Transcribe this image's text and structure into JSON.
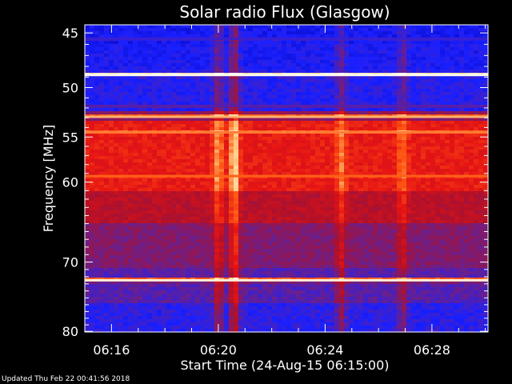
{
  "chart_data": {
    "type": "heatmap",
    "title": "Solar radio Flux (Glasgow)",
    "xlabel": "Start Time (24-Aug-15 06:15:00)",
    "ylabel": "Frequency [MHz]",
    "x_ticks": [
      "06:16",
      "06:20",
      "06:24",
      "06:28"
    ],
    "x_tick_values_min": [
      1,
      5,
      9,
      13
    ],
    "xlim_min": [
      0,
      15.1
    ],
    "y_ticks": [
      45,
      50,
      55,
      60,
      70,
      80
    ],
    "ylim": [
      44.3,
      80.1
    ],
    "y_scale": "log",
    "colormap": [
      "#0000b4",
      "#1a20ff",
      "#6a1f8c",
      "#b0102a",
      "#e61414",
      "#ff5a14",
      "#ffd08a",
      "#ffffff"
    ],
    "horizontal_bands": [
      {
        "freq_mhz": 45.5,
        "level": 0.2
      },
      {
        "freq_mhz": 48.8,
        "level": 0.98
      },
      {
        "freq_mhz": 51.8,
        "level": 0.25
      },
      {
        "freq_mhz": 52.9,
        "level": 0.82
      },
      {
        "freq_mhz": 54.5,
        "level": 0.75
      },
      {
        "freq_mhz": 59.3,
        "level": 0.72
      },
      {
        "freq_mhz": 72.5,
        "level": 0.95
      }
    ],
    "vertical_bursts": [
      {
        "time_min": 5.0,
        "level": 0.6
      },
      {
        "time_min": 5.6,
        "level": 0.85
      },
      {
        "time_min": 9.6,
        "level": 0.5
      },
      {
        "time_min": 11.9,
        "level": 0.45
      }
    ]
  },
  "footer": "Updated Thu Feb 22 00:41:56 2018"
}
